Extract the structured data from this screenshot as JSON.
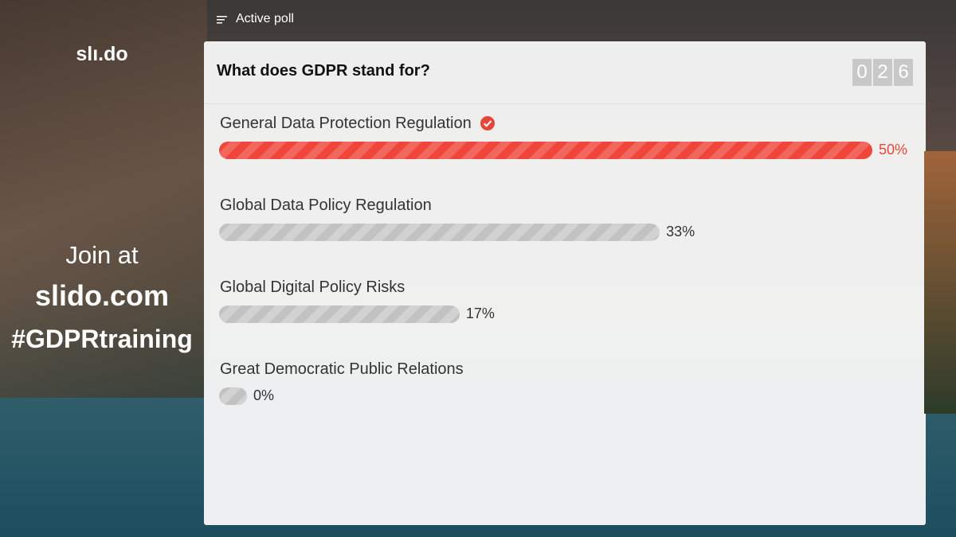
{
  "header": {
    "section": "Active poll"
  },
  "sidebar": {
    "logo": "slı.do",
    "join": "Join at",
    "url": "slido.com",
    "hashtag": "#GDPRtraining"
  },
  "poll": {
    "question": "What does GDPR stand for?",
    "counter": [
      "0",
      "2",
      "6"
    ],
    "options": [
      {
        "label": "General Data Protection Regulation",
        "value": 50,
        "value_label": "50%",
        "correct": true
      },
      {
        "label": "Global Data Policy Regulation",
        "value": 33,
        "value_label": "33%",
        "correct": false
      },
      {
        "label": "Global Digital Policy Risks",
        "value": 17,
        "value_label": "17%",
        "correct": false
      },
      {
        "label": "Great Democratic Public Relations",
        "value": 0,
        "value_label": "0%",
        "correct": false
      }
    ]
  }
}
